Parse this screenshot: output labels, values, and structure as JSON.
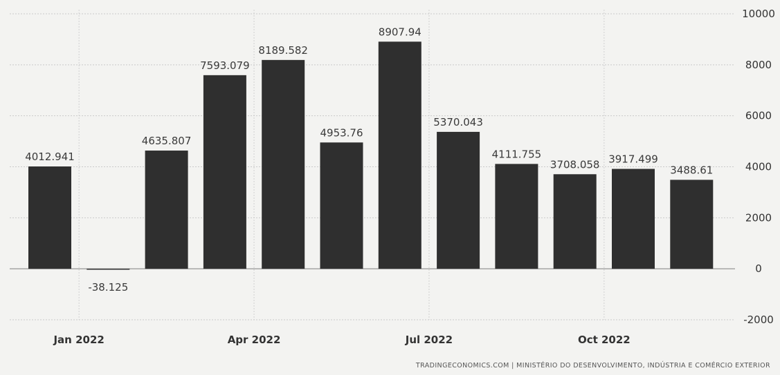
{
  "chart_data": {
    "type": "bar",
    "x": [
      "2021-12",
      "2022-01",
      "2022-02",
      "2022-03",
      "2022-04",
      "2022-05",
      "2022-06",
      "2022-07",
      "2022-08",
      "2022-09",
      "2022-10",
      "2022-11"
    ],
    "values": [
      4012.941,
      -38.125,
      4635.807,
      7593.079,
      8189.582,
      4953.76,
      8907.94,
      5370.043,
      4111.755,
      3708.058,
      3917.499,
      3488.61
    ],
    "value_labels": [
      "4012.941",
      "-38.125",
      "4635.807",
      "7593.079",
      "8189.582",
      "4953.76",
      "8907.94",
      "5370.043",
      "4111.755",
      "3708.058",
      "3917.499",
      "3488.61"
    ],
    "x_tick_labels": [
      {
        "at": "2022-01",
        "label": "Jan 2022"
      },
      {
        "at": "2022-04",
        "label": "Apr 2022"
      },
      {
        "at": "2022-07",
        "label": "Jul 2022"
      },
      {
        "at": "2022-10",
        "label": "Oct 2022"
      }
    ],
    "y_ticks": [
      -2000,
      0,
      2000,
      4000,
      6000,
      8000,
      10000
    ],
    "ylim": [
      -2000,
      10000
    ],
    "y_axis_position": "right",
    "grid": true,
    "bar_color": "#2f2f2f",
    "title": "",
    "xlabel": "",
    "ylabel": ""
  },
  "source": "TRADINGECONOMICS.COM | MINISTÉRIO DO DESENVOLVIMENTO, INDÚSTRIA E COMÉRCIO EXTERIOR"
}
